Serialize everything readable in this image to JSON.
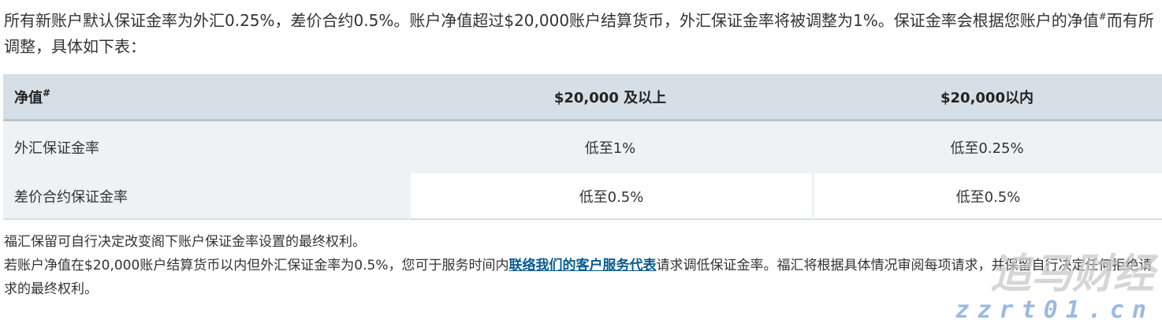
{
  "intro": {
    "before": "所有新账户默认保证金率为外汇0.25%，差价合约0.5%。账户净值超过$20,000账户结算货币，外汇保证金率将被调整为1%。保证金率会根据您账户的净值",
    "sup": "#",
    "after": "而有所调整，具体如下表："
  },
  "table": {
    "header_first": "净值",
    "header_sup": "#",
    "headers": [
      "$20,000 及以上",
      "$20,000以内"
    ],
    "rows": [
      [
        "外汇保证金率",
        "低至1%",
        "低至0.25%"
      ],
      [
        "差价合约保证金率",
        "低至0.5%",
        "低至0.5%"
      ]
    ]
  },
  "notes": {
    "line1": "福汇保留可自行决定改变阁下账户保证金率设置的最终权利。",
    "line2_before": "若账户净值在$20,000账户结算货币以内但外汇保证金率为0.5%，您可于服务时间内",
    "link": "联络我们的客户服务代表",
    "line2_after": "请求调低保证金率。福汇将根据具体情况审阅每项请求，并保留自行决定任何拒绝请求的最终权利。"
  },
  "watermark": {
    "name": "追马财经",
    "url": "zzrt01.cn"
  }
}
